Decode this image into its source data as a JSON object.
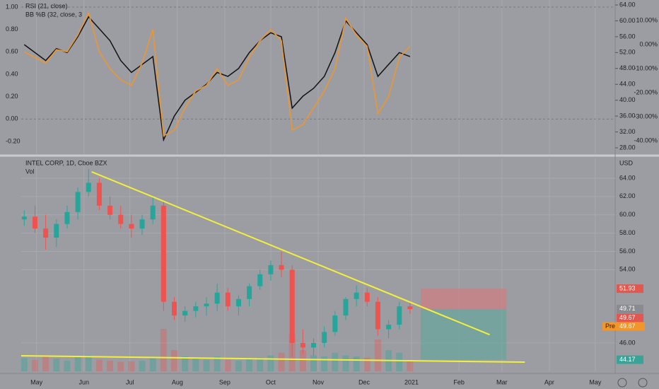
{
  "chart_data": [
    {
      "type": "line",
      "legend": [
        "RSI (21, close)",
        "BB %B (32, close, 3"
      ],
      "xlim": [
        -10,
        378
      ],
      "x": [
        -8,
        -1,
        6,
        13,
        20,
        27,
        34,
        41,
        48,
        55,
        62,
        69,
        76,
        83,
        90,
        97,
        104,
        111,
        118,
        125,
        132,
        139,
        146,
        153,
        160,
        167,
        174,
        181,
        188,
        195,
        202,
        209,
        216,
        223,
        230,
        237,
        244
      ],
      "series": [
        {
          "name": "RSI (21, close)",
          "color": "#111111",
          "axis": "y",
          "values": [
            54,
            52,
            50,
            53,
            52,
            56,
            61,
            58,
            55,
            50,
            47,
            49,
            51,
            30,
            36,
            40,
            42,
            44,
            47,
            46,
            48,
            52,
            55,
            57,
            56,
            38,
            41,
            43,
            46,
            52,
            60,
            57,
            54,
            46,
            49,
            52,
            51
          ]
        },
        {
          "name": "BB %B (32, close, 3",
          "color": "#f0962a",
          "axis": "y2",
          "values": [
            0.6,
            0.55,
            0.5,
            0.62,
            0.6,
            0.75,
            0.95,
            0.6,
            0.45,
            0.35,
            0.3,
            0.5,
            0.8,
            -0.15,
            -0.1,
            0.1,
            0.25,
            0.3,
            0.45,
            0.3,
            0.35,
            0.55,
            0.7,
            0.8,
            0.7,
            -0.1,
            -0.05,
            0.1,
            0.25,
            0.45,
            0.9,
            0.75,
            0.65,
            0.05,
            0.2,
            0.55,
            0.65
          ]
        }
      ],
      "ylim": [
        26.4,
        65.25
      ],
      "yticks": [
        {
          "value": 28,
          "label": "28.00"
        },
        {
          "value": 32,
          "label": "32.00"
        },
        {
          "value": 36,
          "label": "36.00"
        },
        {
          "value": 40,
          "label": "40.00"
        },
        {
          "value": 44,
          "label": "44.00"
        },
        {
          "value": 48,
          "label": "48.00"
        },
        {
          "value": 52,
          "label": "52.00"
        },
        {
          "value": 56,
          "label": "56.00"
        },
        {
          "value": 60,
          "label": "60.00"
        },
        {
          "value": 64,
          "label": "64.00"
        }
      ],
      "y2lim": [
        -0.314,
        1.063
      ],
      "y2ticks": [
        {
          "value": -0.2,
          "label": "-0.20"
        },
        {
          "value": 0,
          "label": "0.00"
        },
        {
          "value": 0.2,
          "label": "0.20"
        },
        {
          "value": 0.4,
          "label": "0.40"
        },
        {
          "value": 0.6,
          "label": "0.60"
        },
        {
          "value": 0.8,
          "label": "0.80"
        },
        {
          "value": 1,
          "label": "1.00"
        }
      ],
      "y3lim": [
        -45.6,
        18.5
      ],
      "y3ticks": [
        {
          "value": 10,
          "label": "10.00%"
        },
        {
          "value": 0,
          "label": "0.00%"
        },
        {
          "value": -10,
          "label": "-10.00%"
        },
        {
          "value": -20,
          "label": "-20.00%"
        },
        {
          "value": -30,
          "label": "-30.00%"
        },
        {
          "value": -40,
          "label": "-40.00%"
        }
      ]
    },
    {
      "type": "candlestick",
      "title": "INTEL CORP, 1D, Cboe BZX",
      "volume_label": "Vol",
      "currency": "USD",
      "xlim": [
        -10,
        378
      ],
      "x": [
        -8,
        -1,
        6,
        13,
        20,
        27,
        34,
        41,
        48,
        55,
        62,
        69,
        76,
        83,
        90,
        97,
        104,
        111,
        118,
        125,
        132,
        139,
        146,
        153,
        160,
        167,
        174,
        181,
        188,
        195,
        202,
        209,
        216,
        223,
        230,
        237,
        244
      ],
      "open": [
        59.5,
        59.8,
        58.5,
        57.5,
        59,
        60.3,
        62.5,
        63.5,
        61,
        60,
        59,
        58.5,
        59.5,
        61,
        50.5,
        49,
        49.5,
        50,
        50.3,
        51.5,
        50,
        50.8,
        52.2,
        53.5,
        54.5,
        54,
        46,
        45.5,
        46,
        47.2,
        49,
        50.8,
        51.5,
        50.5,
        47.5,
        48,
        50
      ],
      "high": [
        60.5,
        61,
        60,
        59.5,
        61,
        63,
        65,
        64,
        62,
        61,
        60,
        60,
        62,
        61.5,
        51,
        50,
        50.5,
        51,
        52.5,
        52,
        51.2,
        52.5,
        54,
        55,
        56,
        54.5,
        47.5,
        46.5,
        47.8,
        49.5,
        51,
        52.3,
        52,
        51,
        48.5,
        50.5,
        50.5
      ],
      "low": [
        58.8,
        58,
        56.2,
        56.5,
        58.5,
        59.5,
        62,
        60.5,
        59.5,
        58.5,
        57.5,
        57.8,
        59,
        49.5,
        48.5,
        48.3,
        48.8,
        49,
        49.5,
        49.5,
        49,
        50,
        51.8,
        52.8,
        53.2,
        44.5,
        44.8,
        44.6,
        45.5,
        46.8,
        48.5,
        50,
        50,
        46.8,
        46.5,
        47.5,
        49.2
      ],
      "close": [
        59.8,
        58.5,
        57.5,
        59,
        60.3,
        62.5,
        63.5,
        61,
        60,
        59,
        58.5,
        59.5,
        61,
        50.5,
        49,
        49.5,
        50,
        50.3,
        51.5,
        50,
        50.8,
        52.2,
        53.5,
        54.5,
        54,
        46,
        45.5,
        46,
        47.2,
        49,
        50.8,
        51.5,
        50.5,
        47.5,
        48,
        50,
        49.7
      ],
      "volume": [
        25,
        22,
        30,
        24,
        20,
        28,
        30,
        22,
        20,
        18,
        19,
        20,
        25,
        80,
        40,
        28,
        24,
        22,
        28,
        22,
        20,
        24,
        26,
        30,
        35,
        70,
        40,
        30,
        28,
        35,
        30,
        28,
        26,
        60,
        40,
        35,
        20
      ],
      "up_color": "#26a69a",
      "down_color": "#ef5350",
      "ylim": [
        42.9,
        66.16
      ],
      "yticks": [
        {
          "value": 46,
          "label": "46.00"
        },
        {
          "value": 54,
          "label": "54.00"
        },
        {
          "value": 56,
          "label": "56.00"
        },
        {
          "value": 58,
          "label": "58.00"
        },
        {
          "value": 60,
          "label": "60.00"
        },
        {
          "value": 62,
          "label": "62.00"
        },
        {
          "value": 64,
          "label": "64.00"
        }
      ],
      "xticks": [
        {
          "value": 0,
          "label": "May"
        },
        {
          "value": 31,
          "label": "Jun"
        },
        {
          "value": 61,
          "label": "Jul"
        },
        {
          "value": 92,
          "label": "Aug"
        },
        {
          "value": 123,
          "label": "Sep"
        },
        {
          "value": 153,
          "label": "Oct"
        },
        {
          "value": 184,
          "label": "Nov"
        },
        {
          "value": 214,
          "label": "Dec"
        },
        {
          "value": 245,
          "label": "2021"
        },
        {
          "value": 276,
          "label": "Feb"
        },
        {
          "value": 304,
          "label": "Mar"
        },
        {
          "value": 335,
          "label": "Apr"
        },
        {
          "value": 365,
          "label": "May"
        }
      ],
      "trendlines": [
        {
          "x": [
            36,
            296
          ],
          "y": [
            64.7,
            46.9
          ],
          "color": "#f2f03c"
        },
        {
          "x": [
            -10,
            319
          ],
          "y": [
            44.6,
            43.9
          ],
          "color": "#f2f03c"
        }
      ],
      "position": {
        "x": [
          251,
          307
        ],
        "target": 51.93,
        "entry": 49.71,
        "stop": 44.17
      },
      "price_labels": [
        {
          "value": 51.93,
          "label": "51.93",
          "color": "#e0584f"
        },
        {
          "value": 49.71,
          "label": "49.71",
          "color": "#8a8b90"
        },
        {
          "value": 49.67,
          "label": "49.67",
          "color": "#e0584f"
        },
        {
          "value": 49.67,
          "label": "49.67",
          "prefix": "Pre",
          "color": "#f0962a"
        },
        {
          "value": 44.17,
          "label": "44.17",
          "color": "#3aa397"
        }
      ]
    }
  ]
}
